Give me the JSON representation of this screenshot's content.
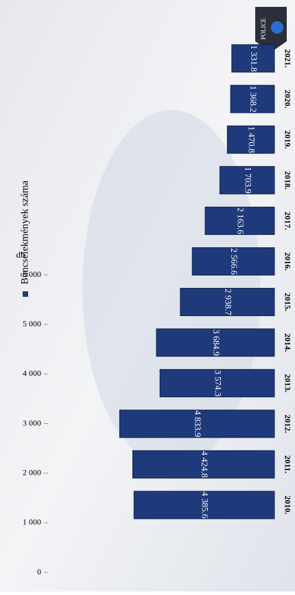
{
  "chart_data": {
    "type": "bar",
    "orientation": "horizontal",
    "series": [
      {
        "name": "Bűncselekmények száma",
        "color": "#1f3a7a",
        "values": [
          4385.6,
          4424.8,
          4833.9,
          3574.3,
          3684.9,
          2938.7,
          2566.6,
          2163.6,
          1703.9,
          1470.8,
          1368.2,
          1331.8
        ],
        "value_labels": [
          "4 385.6",
          "4 424.8",
          "4 833.9",
          "3 574.3",
          "3 684.9",
          "2 938.7",
          "2 566.6",
          "2 163.6",
          "1 703.9",
          "1 470.8",
          "1 368.2",
          "1 331.8"
        ]
      }
    ],
    "categories": [
      "2010.",
      "2011.",
      "2012.",
      "2013.",
      "2014.",
      "2015.",
      "2016.",
      "2017.",
      "2018.",
      "2019.",
      "2020.",
      "2021."
    ],
    "y_label": "db",
    "ylim": [
      0,
      6000
    ],
    "yticks": [
      0,
      {
        "value": 1000,
        "label": "1 000"
      },
      {
        "value": 2000,
        "label": "2 000"
      },
      {
        "value": 3000,
        "label": "3 000"
      },
      {
        "value": 4000,
        "label": "4 000"
      },
      {
        "value": 5000,
        "label": "5 000"
      },
      {
        "value": 6000,
        "label": "6 000"
      }
    ],
    "logo_text": "POLICE"
  }
}
